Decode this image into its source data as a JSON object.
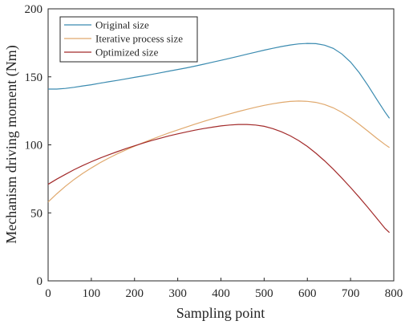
{
  "chart_data": {
    "type": "line",
    "title": "",
    "xlabel": "Sampling point",
    "ylabel": "Mechanism driving moment (Nm)",
    "xlim": [
      0,
      800
    ],
    "ylim": [
      0,
      200
    ],
    "xticks": [
      0,
      100,
      200,
      300,
      400,
      500,
      600,
      700,
      800
    ],
    "yticks": [
      0,
      50,
      100,
      150,
      200
    ],
    "grid": false,
    "legend_position": "top-left",
    "x": [
      0,
      20,
      40,
      60,
      80,
      100,
      120,
      140,
      160,
      180,
      200,
      220,
      240,
      260,
      280,
      300,
      320,
      340,
      360,
      380,
      400,
      420,
      440,
      460,
      480,
      500,
      520,
      540,
      560,
      580,
      600,
      620,
      640,
      660,
      680,
      700,
      720,
      740,
      760,
      780,
      790
    ],
    "series": [
      {
        "name": "Original size",
        "color": "#3b8bb0",
        "values": [
          141,
          141,
          141.5,
          142.3,
          143.3,
          144.2,
          145.3,
          146.4,
          147.4,
          148.5,
          149.6,
          150.7,
          151.8,
          153,
          154.2,
          155.4,
          156.6,
          157.9,
          159.3,
          160.7,
          162.1,
          163.6,
          165.1,
          166.6,
          168.1,
          169.6,
          171,
          172.3,
          173.4,
          174.2,
          174.6,
          174.4,
          173.3,
          170.9,
          166.8,
          160.9,
          153.1,
          143.8,
          133.8,
          124,
          119.5
        ]
      },
      {
        "name": "Iterative process size",
        "color": "#e0a96e",
        "values": [
          58,
          64,
          69.5,
          74.5,
          79,
          83,
          86.8,
          90.2,
          93.4,
          96.3,
          99,
          101.6,
          104.1,
          106.5,
          108.8,
          111,
          113.1,
          115.2,
          117.2,
          119.1,
          121,
          122.8,
          124.5,
          126.1,
          127.6,
          129,
          130.2,
          131.2,
          131.9,
          132.2,
          132,
          131.2,
          129.6,
          127.2,
          123.9,
          119.8,
          115.1,
          110.1,
          105,
          100.2,
          98
        ]
      },
      {
        "name": "Optimized size",
        "color": "#a32b2b",
        "values": [
          71,
          74.8,
          78.3,
          81.7,
          84.8,
          87.6,
          90.2,
          92.7,
          95,
          97.2,
          99.3,
          101.3,
          103.2,
          104.9,
          106.6,
          108.1,
          109.5,
          110.8,
          112,
          113,
          113.9,
          114.6,
          115,
          115,
          114.6,
          113.6,
          111.9,
          109.6,
          106.7,
          103.1,
          98.8,
          93.8,
          88.2,
          82.1,
          75.6,
          68.7,
          61.5,
          54,
          46.3,
          38.5,
          35.5
        ]
      }
    ]
  }
}
